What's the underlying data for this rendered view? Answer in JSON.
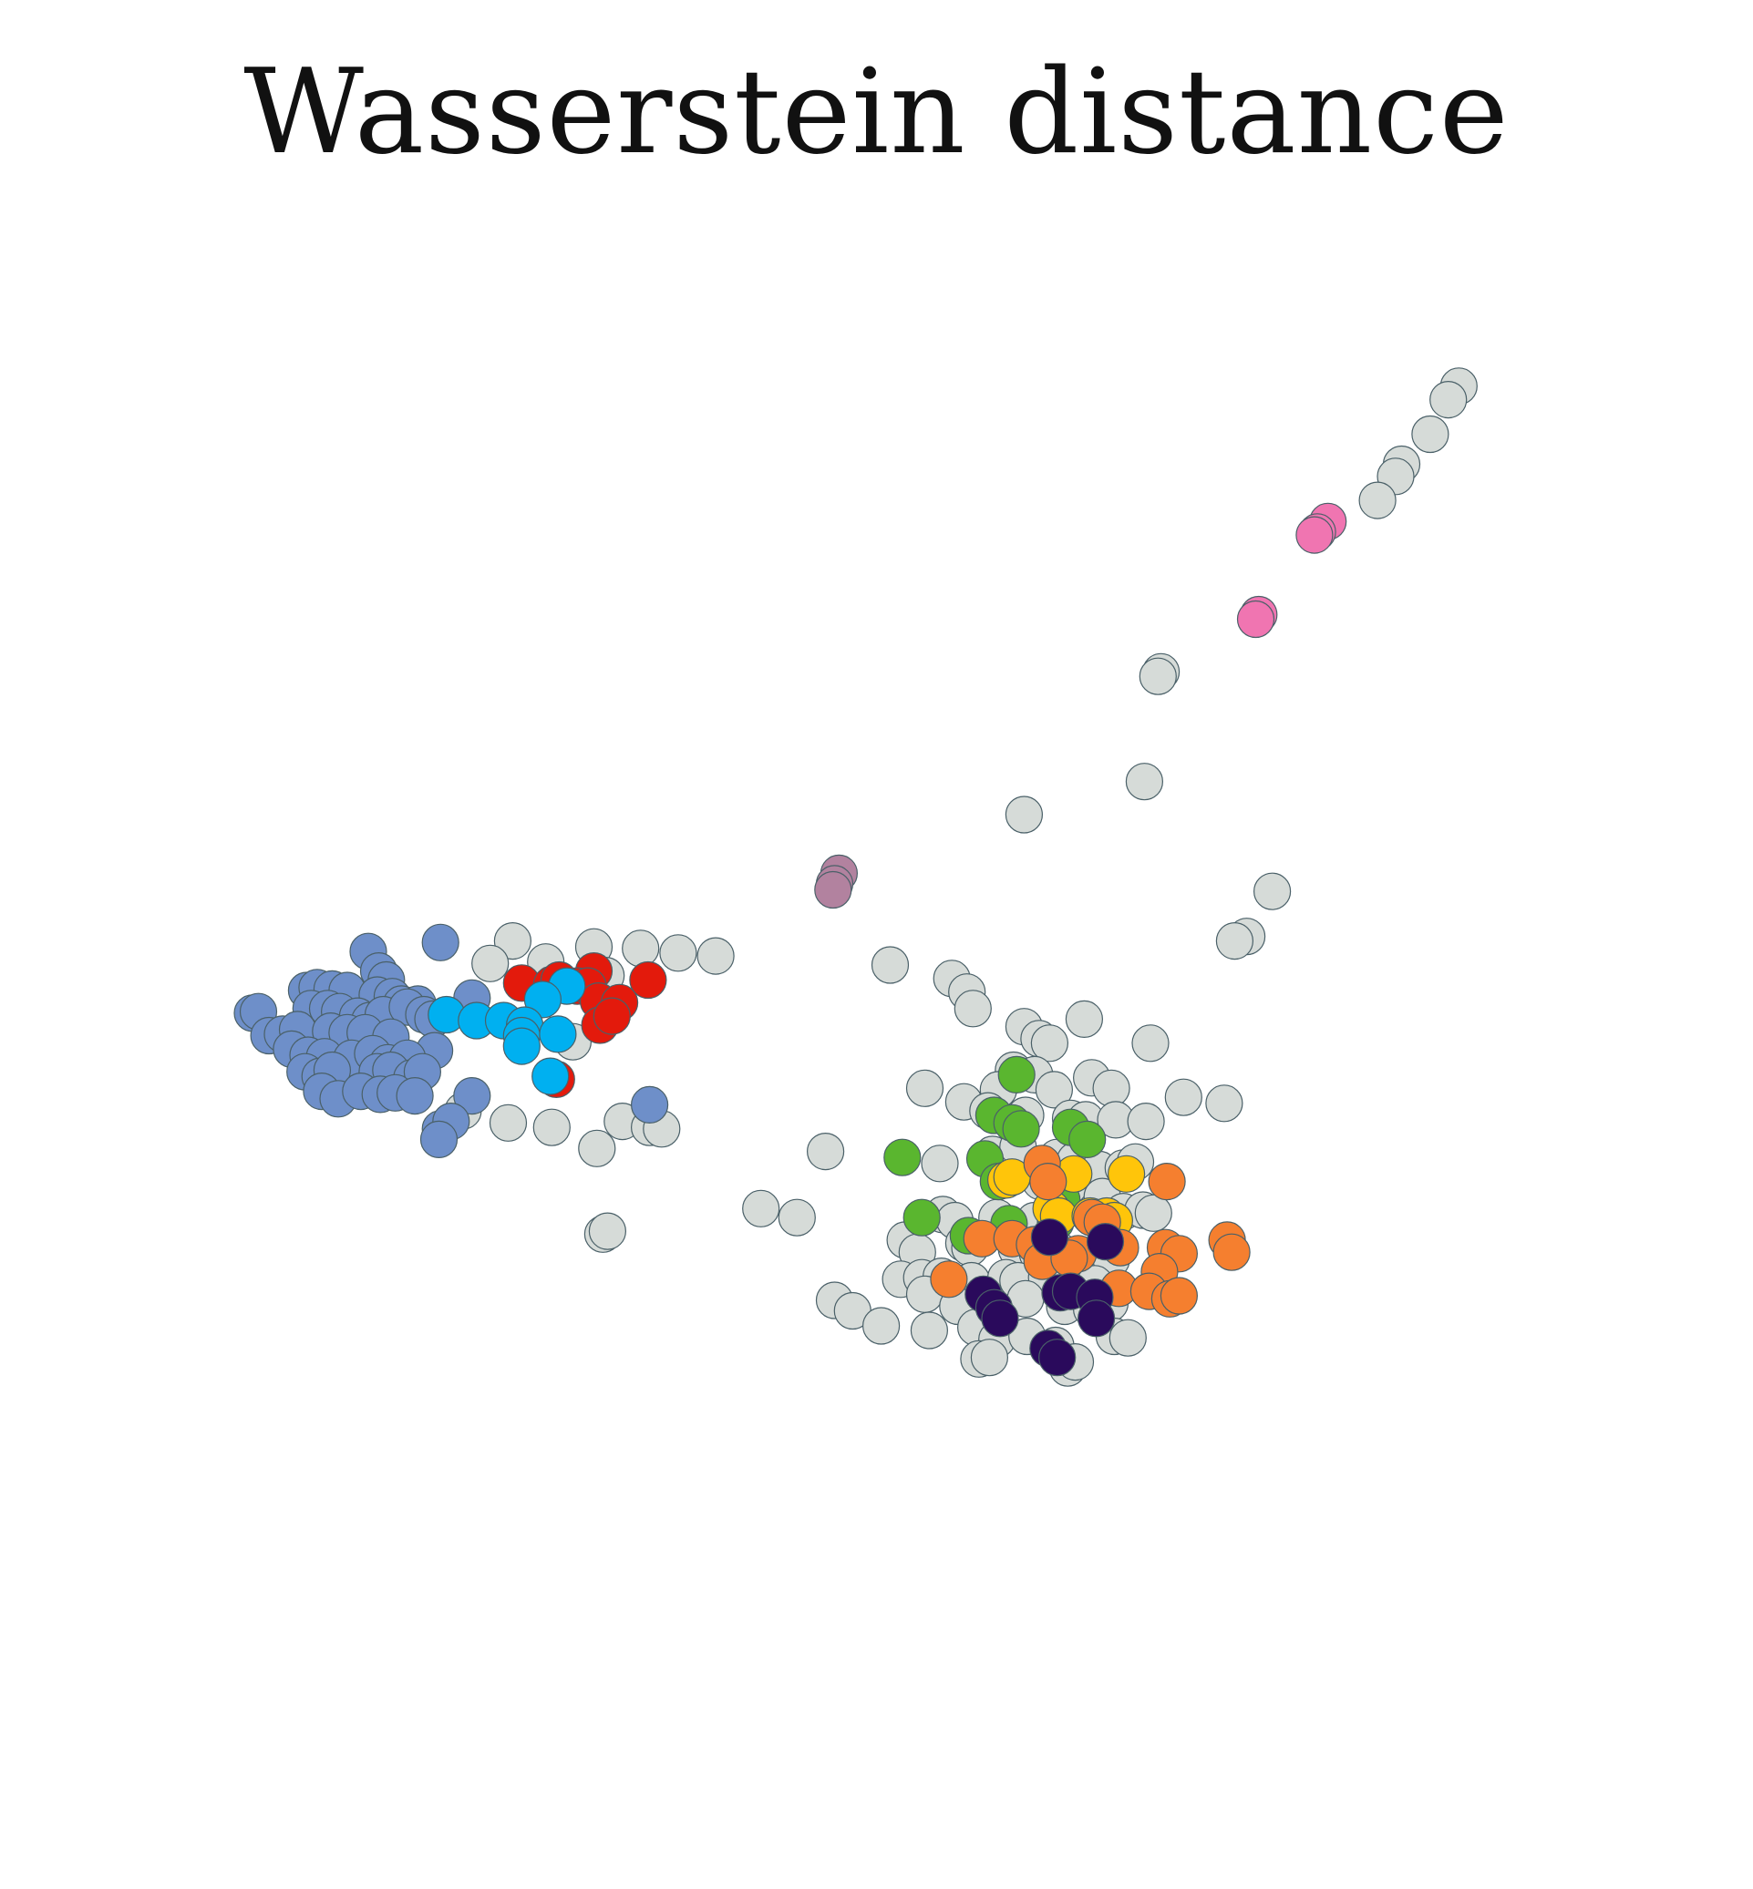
{
  "chart_data": {
    "type": "scatter",
    "title": "Wasserstein distance",
    "xlabel": "",
    "ylabel": "",
    "axes_visible": false,
    "grid": false,
    "legend": "none",
    "xlim": [
      0,
      100
    ],
    "ylim": [
      0,
      100
    ],
    "series": [
      {
        "color": "#d6dbd8",
        "points": [
          [
            88.5,
            92.5
          ],
          [
            87.8,
            91.6
          ],
          [
            86.6,
            89.3
          ],
          [
            84.7,
            87.3
          ],
          [
            84.3,
            86.5
          ],
          [
            83.1,
            84.9
          ],
          [
            68.7,
            73.5
          ],
          [
            68.5,
            73.2
          ],
          [
            67.6,
            66.2
          ],
          [
            59.6,
            64.0
          ],
          [
            76.1,
            58.9
          ],
          [
            74.4,
            55.9
          ],
          [
            73.6,
            55.6
          ],
          [
            25.6,
            55.6
          ],
          [
            31.0,
            55.2
          ],
          [
            34.1,
            55.1
          ],
          [
            36.6,
            54.8
          ],
          [
            39.1,
            54.6
          ],
          [
            27.8,
            54.2
          ],
          [
            24.1,
            54.1
          ],
          [
            31.8,
            53.3
          ],
          [
            50.7,
            54.0
          ],
          [
            54.8,
            53.1
          ],
          [
            55.8,
            52.2
          ],
          [
            56.2,
            51.1
          ],
          [
            63.6,
            50.4
          ],
          [
            59.6,
            49.9
          ],
          [
            60.6,
            49.1
          ],
          [
            61.3,
            48.8
          ],
          [
            68.0,
            48.8
          ],
          [
            29.6,
            48.9
          ],
          [
            58.9,
            47.0
          ],
          [
            60.3,
            46.7
          ],
          [
            57.9,
            45.7
          ],
          [
            61.6,
            45.7
          ],
          [
            64.1,
            46.5
          ],
          [
            65.4,
            45.8
          ],
          [
            70.2,
            45.2
          ],
          [
            72.9,
            44.8
          ],
          [
            53.0,
            45.8
          ],
          [
            55.6,
            44.9
          ],
          [
            57.2,
            44.3
          ],
          [
            59.7,
            44.0
          ],
          [
            62.7,
            43.8
          ],
          [
            63.7,
            43.7
          ],
          [
            65.7,
            43.7
          ],
          [
            67.7,
            43.6
          ],
          [
            22.3,
            44.3
          ],
          [
            25.3,
            43.5
          ],
          [
            28.2,
            43.2
          ],
          [
            32.9,
            43.6
          ],
          [
            34.7,
            43.2
          ],
          [
            35.5,
            43.1
          ],
          [
            31.2,
            41.8
          ],
          [
            46.4,
            41.6
          ],
          [
            54.0,
            40.8
          ],
          [
            57.5,
            41.4
          ],
          [
            59.2,
            41.9
          ],
          [
            61.8,
            41.2
          ],
          [
            63.0,
            41.0
          ],
          [
            64.6,
            40.4
          ],
          [
            66.2,
            40.5
          ],
          [
            67.0,
            40.9
          ],
          [
            60.7,
            39.6
          ],
          [
            62.6,
            39.3
          ],
          [
            64.8,
            38.6
          ],
          [
            42.1,
            37.8
          ],
          [
            44.5,
            37.2
          ],
          [
            54.2,
            37.4
          ],
          [
            55.0,
            37.0
          ],
          [
            57.8,
            37.2
          ],
          [
            60.3,
            37.0
          ],
          [
            66.2,
            37.6
          ],
          [
            67.5,
            37.7
          ],
          [
            68.2,
            37.5
          ],
          [
            31.6,
            36.1
          ],
          [
            31.9,
            36.3
          ],
          [
            51.7,
            35.7
          ],
          [
            52.5,
            34.9
          ],
          [
            55.6,
            35.5
          ],
          [
            56.0,
            35.2
          ],
          [
            59.1,
            35.1
          ],
          [
            60.5,
            34.8
          ],
          [
            61.8,
            35.1
          ],
          [
            64.1,
            34.7
          ],
          [
            65.4,
            34.4
          ],
          [
            51.4,
            33.1
          ],
          [
            52.8,
            33.2
          ],
          [
            54.1,
            33.3
          ],
          [
            56.1,
            33.0
          ],
          [
            58.4,
            33.2
          ],
          [
            59.2,
            33.0
          ],
          [
            61.1,
            33.2
          ],
          [
            62.6,
            32.9
          ],
          [
            64.3,
            32.8
          ],
          [
            47.0,
            31.7
          ],
          [
            48.2,
            31.0
          ],
          [
            53.0,
            32.1
          ],
          [
            55.2,
            31.3
          ],
          [
            57.6,
            31.0
          ],
          [
            59.7,
            31.8
          ],
          [
            62.3,
            31.3
          ],
          [
            64.1,
            31.1
          ],
          [
            65.3,
            31.5
          ],
          [
            50.1,
            30.0
          ],
          [
            53.3,
            29.7
          ],
          [
            56.4,
            29.9
          ],
          [
            57.8,
            29.1
          ],
          [
            59.8,
            29.3
          ],
          [
            61.7,
            28.7
          ],
          [
            65.6,
            29.3
          ],
          [
            66.5,
            29.2
          ],
          [
            56.6,
            27.8
          ],
          [
            57.3,
            27.9
          ],
          [
            62.5,
            27.2
          ],
          [
            63.0,
            27.6
          ]
        ]
      },
      {
        "color": "#6e8fc9",
        "points": [
          [
            20.8,
            55.5
          ],
          [
            16.0,
            54.9
          ],
          [
            16.7,
            53.6
          ],
          [
            17.2,
            53.0
          ],
          [
            11.9,
            52.3
          ],
          [
            12.6,
            52.5
          ],
          [
            13.6,
            52.4
          ],
          [
            14.6,
            52.3
          ],
          [
            16.6,
            52.0
          ],
          [
            17.6,
            51.9
          ],
          [
            18.2,
            51.4
          ],
          [
            19.3,
            51.4
          ],
          [
            22.9,
            51.8
          ],
          [
            8.3,
            50.8
          ],
          [
            8.7,
            50.9
          ],
          [
            12.2,
            51.1
          ],
          [
            13.3,
            51.1
          ],
          [
            14.1,
            50.9
          ],
          [
            15.3,
            50.6
          ],
          [
            16.1,
            50.3
          ],
          [
            17.0,
            50.7
          ],
          [
            18.6,
            51.2
          ],
          [
            19.7,
            50.7
          ],
          [
            20.3,
            50.4
          ],
          [
            9.4,
            49.3
          ],
          [
            10.3,
            49.4
          ],
          [
            11.3,
            49.7
          ],
          [
            13.5,
            49.6
          ],
          [
            14.6,
            49.5
          ],
          [
            15.8,
            49.5
          ],
          [
            17.5,
            49.2
          ],
          [
            20.4,
            48.3
          ],
          [
            10.9,
            48.4
          ],
          [
            12.0,
            48.0
          ],
          [
            13.1,
            47.9
          ],
          [
            14.9,
            47.8
          ],
          [
            16.3,
            48.1
          ],
          [
            17.3,
            47.5
          ],
          [
            18.6,
            47.8
          ],
          [
            11.8,
            46.9
          ],
          [
            12.8,
            46.6
          ],
          [
            13.6,
            47.0
          ],
          [
            16.6,
            46.9
          ],
          [
            17.5,
            47.0
          ],
          [
            18.9,
            46.5
          ],
          [
            19.6,
            46.9
          ],
          [
            12.9,
            45.6
          ],
          [
            14.0,
            45.1
          ],
          [
            15.5,
            45.6
          ],
          [
            16.8,
            45.4
          ],
          [
            17.8,
            45.5
          ],
          [
            19.1,
            45.3
          ],
          [
            22.9,
            45.3
          ],
          [
            34.7,
            44.7
          ],
          [
            20.8,
            43.1
          ],
          [
            21.5,
            43.6
          ],
          [
            20.7,
            42.4
          ]
        ]
      },
      {
        "color": "#e31a0c",
        "points": [
          [
            31.0,
            53.6
          ],
          [
            26.2,
            52.8
          ],
          [
            28.2,
            52.7
          ],
          [
            28.7,
            53.0
          ],
          [
            29.9,
            52.6
          ],
          [
            30.6,
            52.6
          ],
          [
            34.6,
            53.0
          ],
          [
            31.3,
            51.6
          ],
          [
            32.7,
            51.5
          ],
          [
            31.4,
            50.0
          ],
          [
            32.2,
            50.6
          ],
          [
            28.5,
            46.4
          ]
        ]
      },
      {
        "color": "#00b0f0",
        "points": [
          [
            29.2,
            52.6
          ],
          [
            27.6,
            51.7
          ],
          [
            21.2,
            50.7
          ],
          [
            23.2,
            50.3
          ],
          [
            25.0,
            50.3
          ],
          [
            26.4,
            50.0
          ],
          [
            26.2,
            49.3
          ],
          [
            28.6,
            49.4
          ],
          [
            26.2,
            48.6
          ],
          [
            28.1,
            46.6
          ]
        ]
      },
      {
        "color": "#f075b1",
        "points": [
          [
            79.8,
            83.5
          ],
          [
            79.1,
            82.8
          ],
          [
            78.9,
            82.6
          ],
          [
            75.2,
            77.3
          ],
          [
            75.0,
            77.0
          ]
        ]
      },
      {
        "color": "#b2829f",
        "points": [
          [
            47.3,
            60.1
          ],
          [
            47.0,
            59.4
          ],
          [
            46.9,
            59.0
          ]
        ]
      },
      {
        "color": "#5ab62f",
        "points": [
          [
            59.1,
            46.7
          ],
          [
            57.6,
            44.0
          ],
          [
            58.8,
            43.5
          ],
          [
            59.4,
            43.1
          ],
          [
            62.7,
            43.2
          ],
          [
            63.8,
            42.4
          ],
          [
            51.5,
            41.2
          ],
          [
            57.0,
            41.1
          ],
          [
            57.9,
            39.6
          ],
          [
            62.1,
            38.4
          ],
          [
            52.8,
            37.2
          ],
          [
            55.9,
            36.0
          ],
          [
            58.6,
            36.8
          ],
          [
            61.7,
            36.9
          ]
        ]
      },
      {
        "color": "#ffc50a",
        "points": [
          [
            58.4,
            39.7
          ],
          [
            58.8,
            39.9
          ],
          [
            62.9,
            40.1
          ],
          [
            66.4,
            40.1
          ],
          [
            61.4,
            37.8
          ],
          [
            61.9,
            37.3
          ],
          [
            64.0,
            37.3
          ],
          [
            65.1,
            37.3
          ],
          [
            65.6,
            37.0
          ]
        ]
      },
      {
        "color": "#f57f2f",
        "points": [
          [
            60.8,
            40.8
          ],
          [
            61.2,
            39.6
          ],
          [
            69.1,
            39.6
          ],
          [
            64.1,
            37.2
          ],
          [
            64.8,
            36.9
          ],
          [
            56.8,
            35.8
          ],
          [
            58.8,
            35.8
          ],
          [
            60.3,
            35.4
          ],
          [
            63.2,
            34.8
          ],
          [
            66.0,
            35.2
          ],
          [
            69.0,
            35.2
          ],
          [
            69.9,
            34.8
          ],
          [
            73.1,
            35.7
          ],
          [
            73.4,
            34.9
          ],
          [
            60.8,
            34.3
          ],
          [
            62.6,
            34.5
          ],
          [
            68.6,
            33.6
          ],
          [
            54.6,
            33.1
          ],
          [
            65.9,
            32.5
          ],
          [
            67.9,
            32.3
          ],
          [
            69.3,
            31.8
          ],
          [
            69.9,
            32.0
          ]
        ]
      },
      {
        "color": "#2a0a5c",
        "points": [
          [
            61.3,
            35.9
          ],
          [
            65.0,
            35.6
          ],
          [
            56.9,
            32.1
          ],
          [
            62.0,
            32.2
          ],
          [
            62.7,
            32.3
          ],
          [
            64.3,
            31.9
          ],
          [
            57.6,
            31.2
          ],
          [
            58.0,
            30.5
          ],
          [
            64.4,
            30.5
          ],
          [
            61.2,
            28.5
          ],
          [
            61.8,
            27.9
          ]
        ]
      }
    ]
  }
}
